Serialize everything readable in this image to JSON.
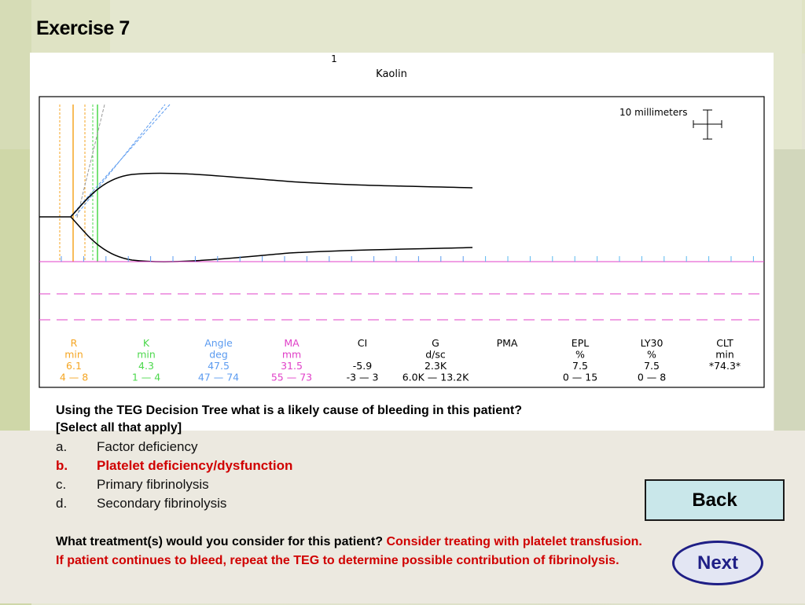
{
  "slide": {
    "title": "Exercise 7"
  },
  "tracing": {
    "channel": "1",
    "assay": "Kaolin",
    "scale_label": "10 millimeters",
    "parameters": [
      {
        "name": "R",
        "unit": "min",
        "value": "6.1",
        "range": "4 — 8",
        "color": "#f5a623"
      },
      {
        "name": "K",
        "unit": "min",
        "value": "4.3",
        "range": "1 — 4",
        "color": "#4cd84c"
      },
      {
        "name": "Angle",
        "unit": "deg",
        "value": "47.5",
        "range": "47 — 74",
        "color": "#5b9bf0"
      },
      {
        "name": "MA",
        "unit": "mm",
        "value": "31.5",
        "range": "55 — 73",
        "color": "#e040c8"
      },
      {
        "name": "CI",
        "unit": "",
        "value": "-5.9",
        "range": "-3 — 3",
        "color": "#000000"
      },
      {
        "name": "G",
        "unit": "d/sc",
        "value": "2.3K",
        "range": "6.0K — 13.2K",
        "color": "#000000"
      },
      {
        "name": "PMA",
        "unit": "",
        "value": "",
        "range": "",
        "color": "#000000"
      },
      {
        "name": "EPL",
        "unit": "%",
        "value": "7.5",
        "range": "0 — 15",
        "color": "#000000"
      },
      {
        "name": "LY30",
        "unit": "%",
        "value": "7.5",
        "range": "0 — 8",
        "color": "#000000"
      },
      {
        "name": "CLT",
        "unit": "min",
        "value": "*74.3*",
        "range": "",
        "color": "#000000"
      }
    ]
  },
  "question": {
    "line1": "Using the TEG Decision Tree what is a likely cause of bleeding in this patient?",
    "line2": "[Select all that apply]",
    "options": [
      {
        "letter": "a.",
        "text": "Factor deficiency",
        "correct": false
      },
      {
        "letter": "b.",
        "text": "Platelet deficiency/dysfunction",
        "correct": true
      },
      {
        "letter": "c.",
        "text": "Primary fibrinolysis",
        "correct": false
      },
      {
        "letter": "d.",
        "text": "Secondary fibrinolysis",
        "correct": false
      }
    ]
  },
  "treatment": {
    "prompt": "What treatment(s) would you consider for this patient?",
    "answer": "Consider treating with platelet transfusion. If patient continues to bleed, repeat the TEG to determine possible contribution of fibrinolysis."
  },
  "nav": {
    "back_label": "Back",
    "next_label": "Next"
  },
  "colors": {
    "correct": "#d00000",
    "next_border": "#1f1f86",
    "back_fill": "#c9e7ea"
  }
}
